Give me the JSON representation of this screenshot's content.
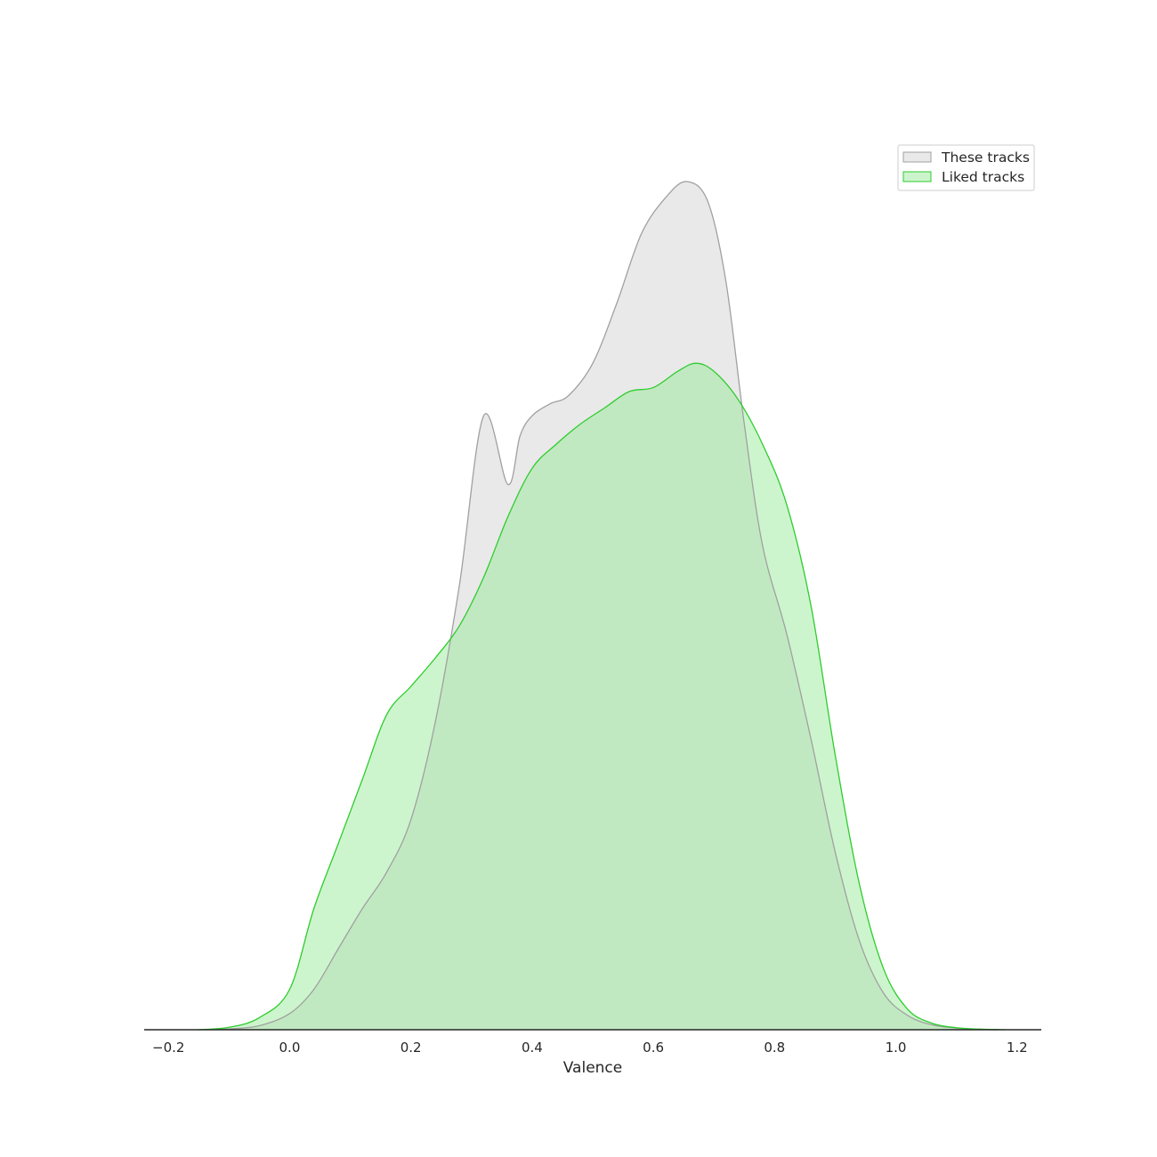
{
  "chart_data": {
    "type": "area",
    "xlabel": "Valence",
    "ylabel": "",
    "xlim": [
      -0.24,
      1.24
    ],
    "ylim": [
      0,
      2.1
    ],
    "x_ticks": [
      -0.2,
      0.0,
      0.2,
      0.4,
      0.6,
      0.8,
      1.0,
      1.2
    ],
    "x_tick_labels": [
      "−0.2",
      "0.0",
      "0.2",
      "0.4",
      "0.6",
      "0.8",
      "1.0",
      "1.2"
    ],
    "grid": false,
    "legend_position": "top-right",
    "series": [
      {
        "name": "These tracks",
        "line_color": "#a0a0a0",
        "fill_color": "#d3d3d3",
        "fill_opacity": 0.5,
        "x": [
          -0.14,
          -0.1,
          -0.05,
          0.0,
          0.04,
          0.08,
          0.12,
          0.16,
          0.2,
          0.24,
          0.28,
          0.32,
          0.36,
          0.38,
          0.4,
          0.43,
          0.46,
          0.5,
          0.54,
          0.58,
          0.62,
          0.655,
          0.69,
          0.72,
          0.75,
          0.78,
          0.82,
          0.86,
          0.9,
          0.94,
          0.98,
          1.02,
          1.06,
          1.1,
          1.14,
          1.17
        ],
        "values": [
          0.0,
          0.002,
          0.01,
          0.04,
          0.1,
          0.2,
          0.3,
          0.39,
          0.52,
          0.76,
          1.1,
          1.52,
          1.35,
          1.47,
          1.52,
          1.55,
          1.57,
          1.65,
          1.8,
          1.97,
          2.06,
          2.1,
          2.05,
          1.85,
          1.5,
          1.2,
          0.98,
          0.72,
          0.44,
          0.22,
          0.09,
          0.035,
          0.012,
          0.004,
          0.001,
          0.0
        ]
      },
      {
        "name": "Liked tracks",
        "line_color": "#2ecc2e",
        "fill_color": "#90e890",
        "fill_opacity": 0.45,
        "x": [
          -0.15,
          -0.1,
          -0.05,
          0.0,
          0.04,
          0.08,
          0.12,
          0.16,
          0.2,
          0.24,
          0.28,
          0.32,
          0.36,
          0.4,
          0.44,
          0.48,
          0.52,
          0.56,
          0.6,
          0.64,
          0.67,
          0.7,
          0.74,
          0.78,
          0.82,
          0.86,
          0.9,
          0.94,
          0.98,
          1.02,
          1.06,
          1.1,
          1.14,
          1.18
        ],
        "values": [
          0.0,
          0.006,
          0.03,
          0.1,
          0.3,
          0.46,
          0.62,
          0.78,
          0.85,
          0.92,
          1.0,
          1.12,
          1.27,
          1.39,
          1.45,
          1.5,
          1.54,
          1.58,
          1.59,
          1.63,
          1.65,
          1.63,
          1.56,
          1.45,
          1.3,
          1.05,
          0.68,
          0.36,
          0.15,
          0.05,
          0.016,
          0.005,
          0.0015,
          0.0
        ]
      }
    ]
  }
}
